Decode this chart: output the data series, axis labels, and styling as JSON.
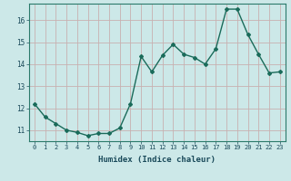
{
  "x": [
    0,
    1,
    2,
    3,
    4,
    5,
    6,
    7,
    8,
    9,
    10,
    11,
    12,
    13,
    14,
    15,
    16,
    17,
    18,
    19,
    20,
    21,
    22,
    23
  ],
  "y": [
    12.2,
    11.6,
    11.3,
    11.0,
    10.9,
    10.75,
    10.85,
    10.85,
    11.1,
    12.2,
    14.35,
    13.65,
    14.4,
    14.9,
    14.45,
    14.3,
    14.0,
    14.7,
    16.5,
    16.5,
    15.35,
    14.45,
    13.6,
    13.65
  ],
  "xlabel": "Humidex (Indice chaleur)",
  "xlim": [
    -0.5,
    23.5
  ],
  "ylim": [
    10.5,
    16.75
  ],
  "yticks": [
    11,
    12,
    13,
    14,
    15,
    16
  ],
  "xticks": [
    0,
    1,
    2,
    3,
    4,
    5,
    6,
    7,
    8,
    9,
    10,
    11,
    12,
    13,
    14,
    15,
    16,
    17,
    18,
    19,
    20,
    21,
    22,
    23
  ],
  "xtick_labels": [
    "0",
    "1",
    "2",
    "3",
    "4",
    "5",
    "6",
    "7",
    "8",
    "9",
    "10",
    "11",
    "12",
    "13",
    "14",
    "15",
    "16",
    "17",
    "18",
    "19",
    "20",
    "21",
    "22",
    "23"
  ],
  "line_color": "#1a6b5a",
  "marker_color": "#1a6b5a",
  "bg_color": "#cce8e8",
  "grid_color": "#c8b0b0",
  "xlabel_color": "#1a4a5a",
  "tick_color": "#1a4a5a"
}
